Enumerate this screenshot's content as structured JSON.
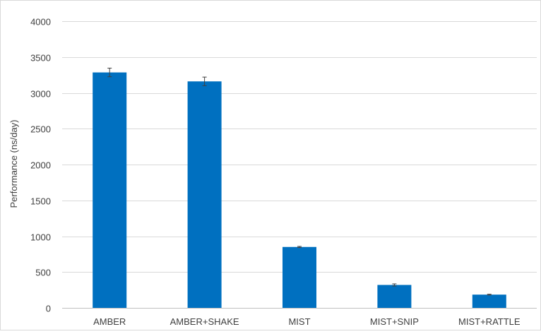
{
  "chart_data": {
    "type": "bar",
    "title": "",
    "xlabel": "",
    "ylabel": "Performance (ns/day)",
    "ylim": [
      0,
      4000
    ],
    "yticks": [
      0,
      500,
      1000,
      1500,
      2000,
      2500,
      3000,
      3500,
      4000
    ],
    "categories": [
      "AMBER",
      "AMBER+SHAKE",
      "MIST",
      "MIST+SNIP",
      "MIST+RATTLE"
    ],
    "series": [
      {
        "values": [
          3285,
          3160,
          850,
          320,
          185
        ],
        "errors": [
          60,
          60,
          8,
          15,
          6
        ],
        "color": "#0070c0"
      }
    ],
    "grid": "horizontal",
    "legend": "none"
  }
}
